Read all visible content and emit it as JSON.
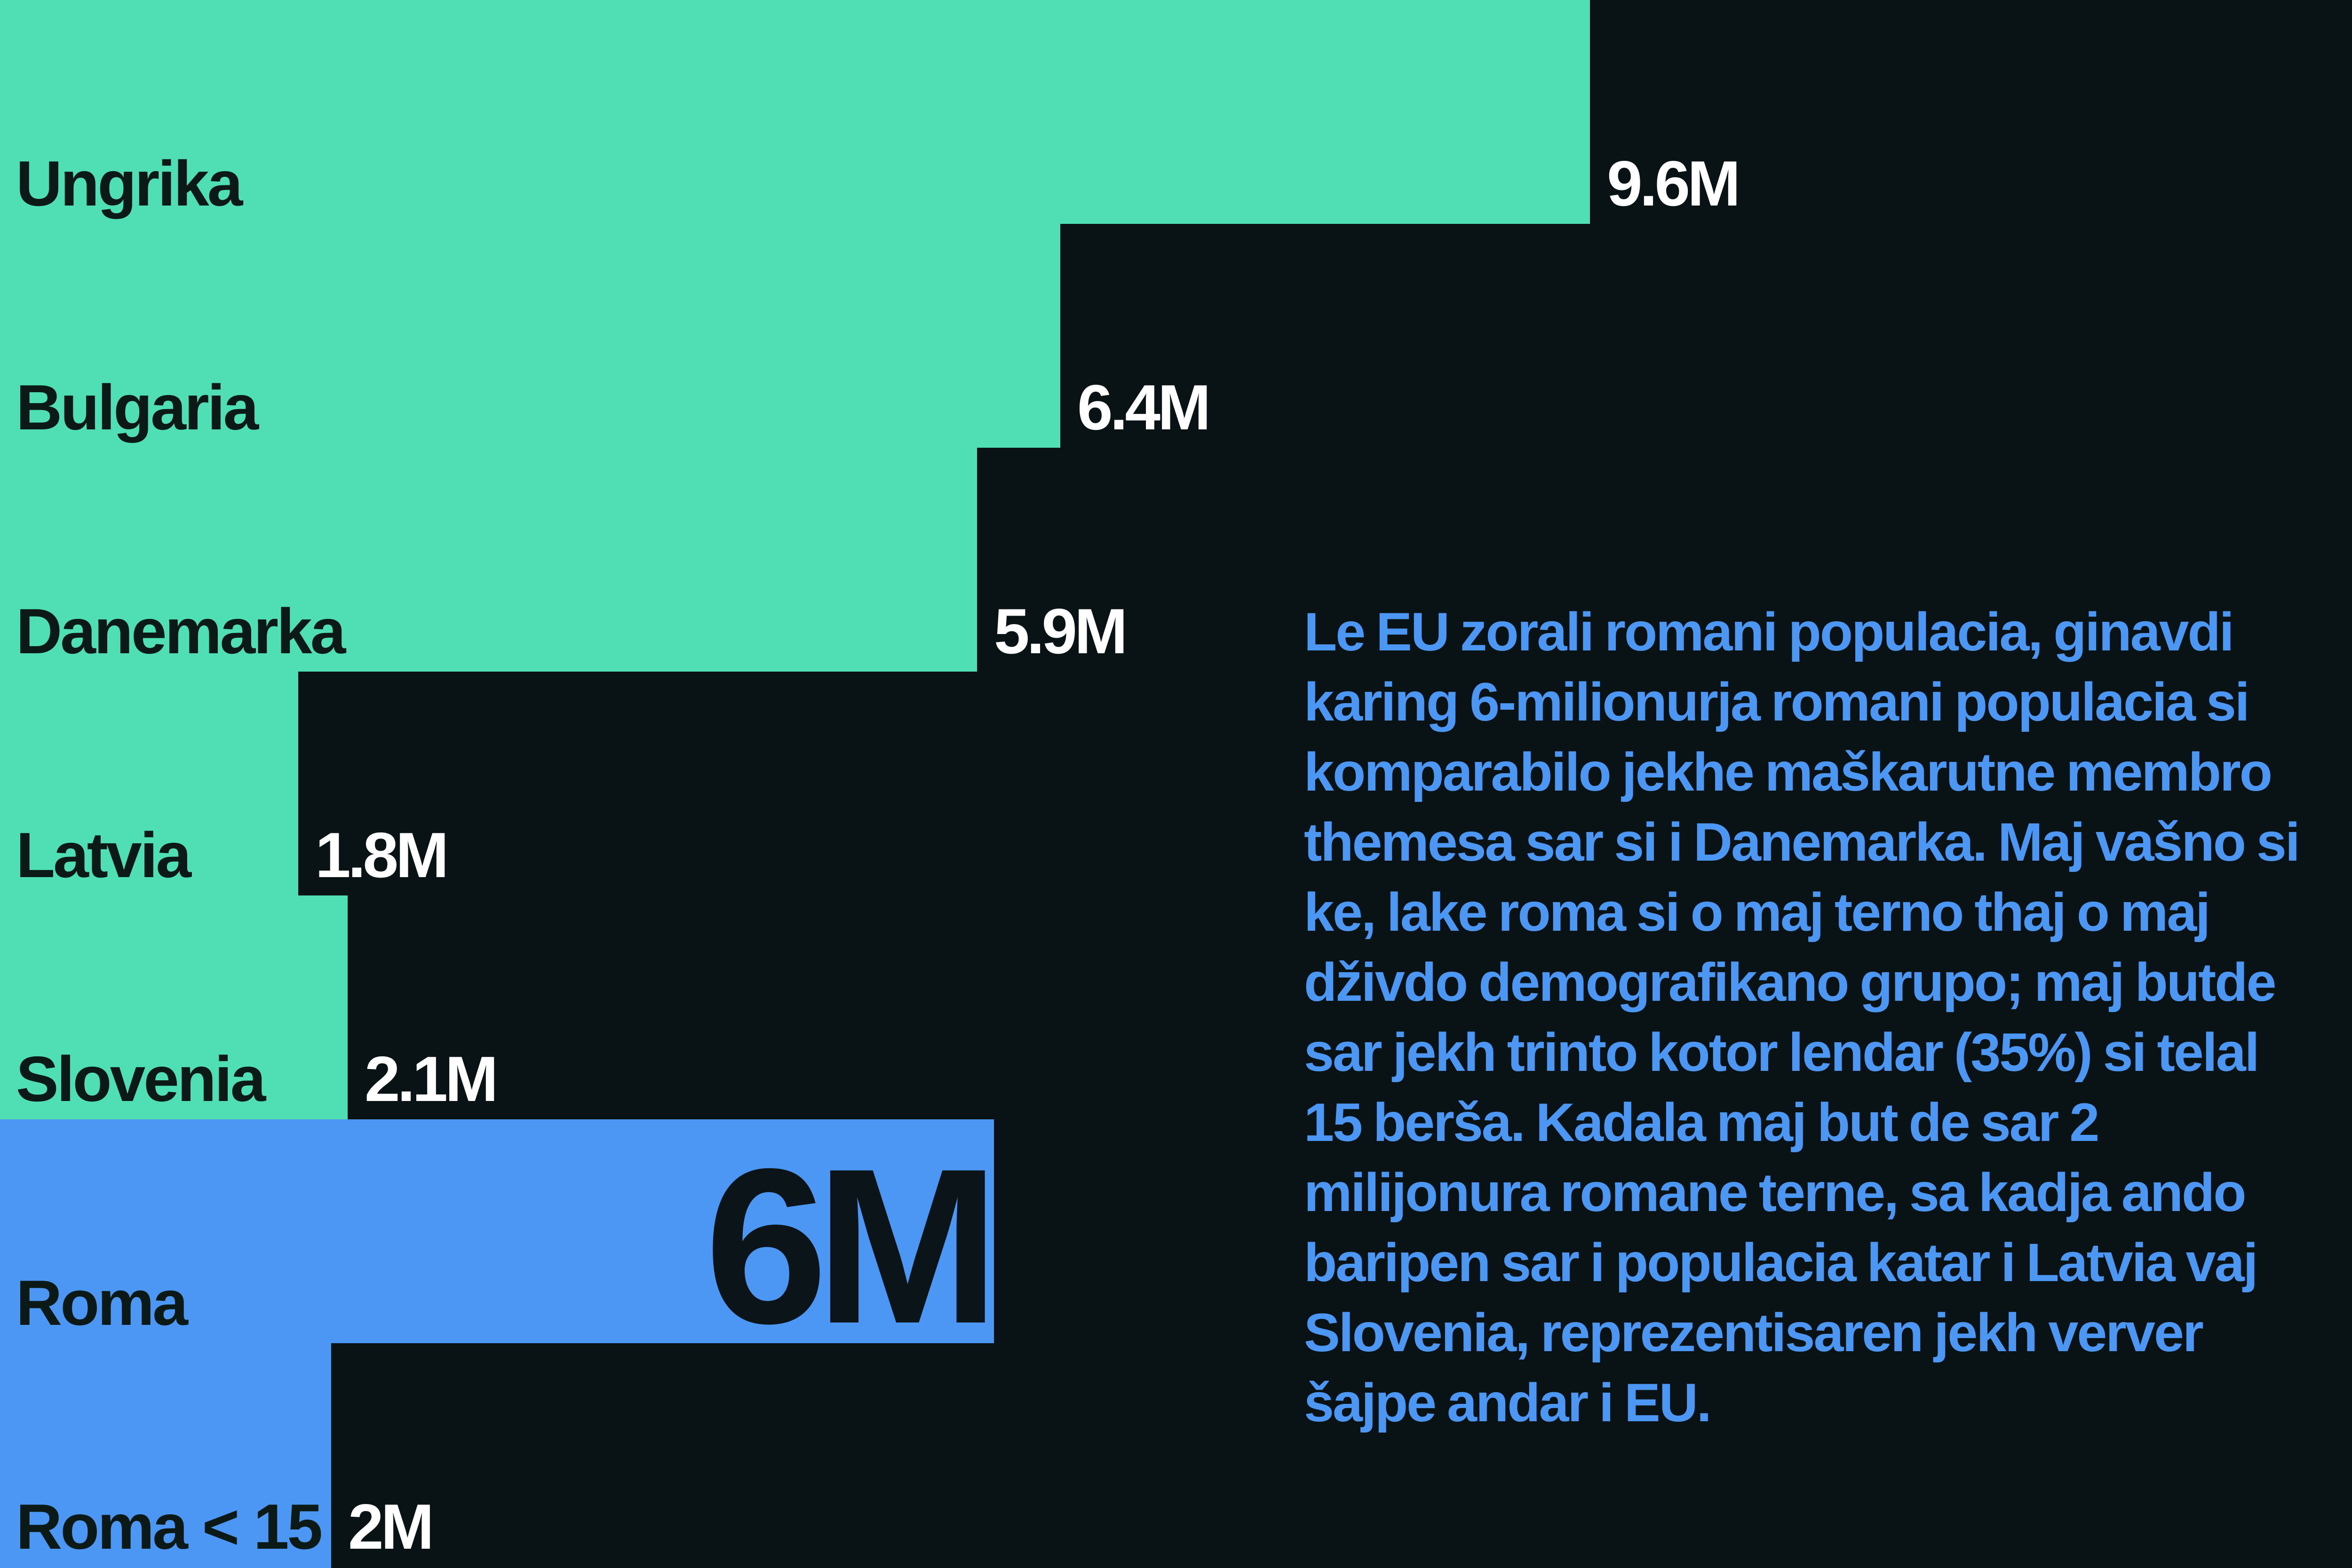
{
  "colors": {
    "background": "#091214",
    "country_bar": "#50dfb5",
    "roma_bar": "#4c97f4",
    "country_label": "#0b1a17",
    "value_label": "#ffffff",
    "big_value": "#0b1418",
    "note_text": "#4c97f4"
  },
  "chart_data": {
    "type": "bar",
    "orientation": "horizontal",
    "categories": [
      "Ungrika",
      "Bulgaria",
      "Danemarka",
      "Latvia",
      "Slovenia",
      "Roma",
      "Roma < 15"
    ],
    "values": [
      9.6,
      6.4,
      5.9,
      1.8,
      2.1,
      6,
      2
    ],
    "value_labels": [
      "9.6M",
      "6.4M",
      "5.9M",
      "1.8M",
      "2.1M",
      "6M",
      "2M"
    ],
    "highlight": [
      "Roma",
      "Roma < 15"
    ],
    "unit": "M",
    "xlim": [
      0,
      14.2
    ]
  },
  "note": {
    "text": "Le EU zorali romani populacia, ginavdi karing  6-milionurja romani populacia si  komparabilo jekhe maškarutne membro themesa sar si i Danemarka. Maj vašno si ke, lake roma si o maj terno thaj o maj dživdo demografikano grupo; maj butde sar jekh trinto kotor lendar (35%) si telal 15 berša. Kadala maj but de sar 2 milijonura romane terne, sa kadja ando baripen sar i populacia katar i Latvia vaj Slovenia, reprezentisaren jekh verver šajpe andar i EU."
  }
}
